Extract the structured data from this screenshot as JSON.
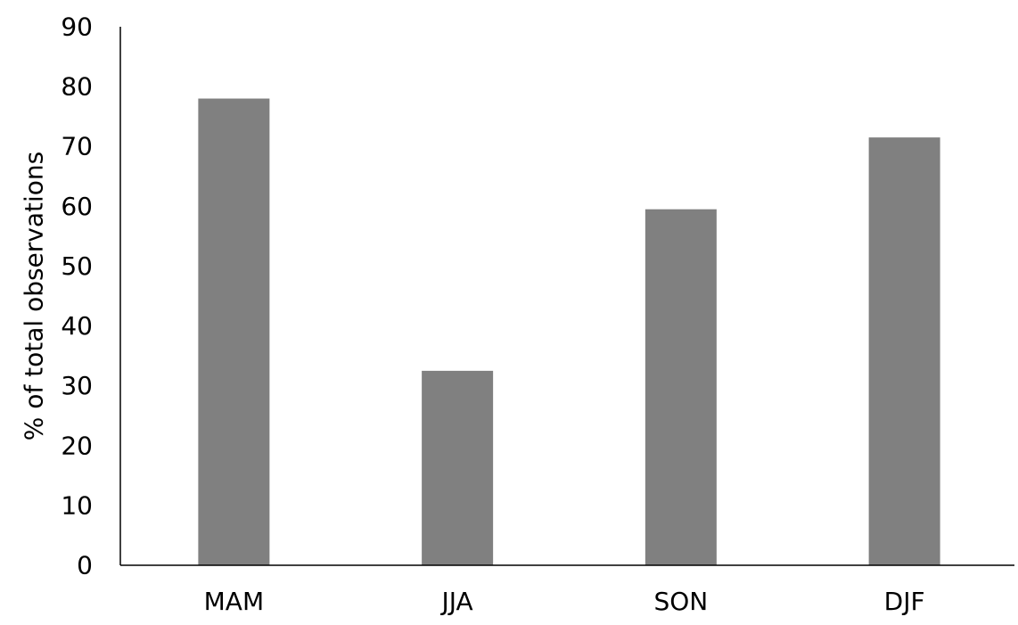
{
  "chart_data": {
    "type": "bar",
    "title": "",
    "xlabel": "",
    "ylabel": "% of total observations",
    "categories": [
      "MAM",
      "JJA",
      "SON",
      "DJF"
    ],
    "values": [
      78,
      32.5,
      59.5,
      71.5
    ],
    "ylim": [
      0,
      90
    ],
    "yticks": [
      0,
      10,
      20,
      30,
      40,
      50,
      60,
      70,
      80,
      90
    ],
    "grid": false,
    "legend": "none",
    "bar_color": "#808080",
    "axis_color": "#000000"
  }
}
